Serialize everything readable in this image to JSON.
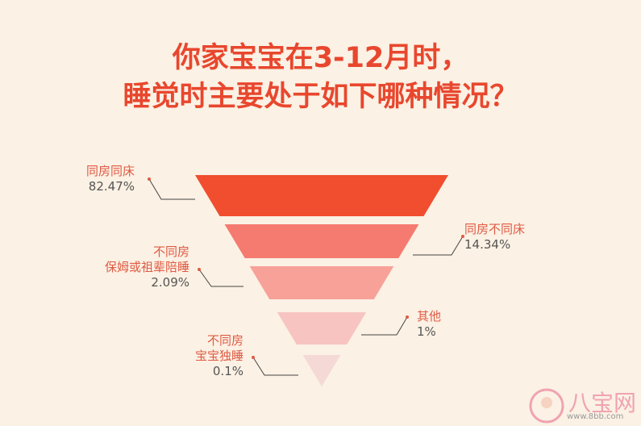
{
  "title": {
    "line1": "你家宝宝在3-12月时，",
    "line2": "睡觉时主要处于如下哪种情况？"
  },
  "chart_data": {
    "type": "funnel",
    "title": "你家宝宝在3-12月时，睡觉时主要处于如下哪种情况？",
    "categories": [
      "同房同床",
      "同房不同床",
      "不同房 保姆或祖辈陪睡",
      "其他",
      "不同房 宝宝独睡"
    ],
    "values": [
      82.47,
      14.34,
      2.09,
      1,
      0.1
    ],
    "value_labels": [
      "82.47%",
      "14.34%",
      "2.09%",
      "1%",
      "0.1%"
    ],
    "colors": [
      "#f04e2e",
      "#f57a70",
      "#f7a199",
      "#f7c4c1",
      "#f4d9d6"
    ],
    "labels": [
      {
        "lines": [
          "同房同床"
        ],
        "value": "82.47%",
        "side": "left"
      },
      {
        "lines": [
          "同房不同床"
        ],
        "value": "14.34%",
        "side": "right"
      },
      {
        "lines": [
          "不同房",
          "保姆或祖辈陪睡"
        ],
        "value": "2.09%",
        "side": "left"
      },
      {
        "lines": [
          "其他"
        ],
        "value": "1%",
        "side": "right"
      },
      {
        "lines": [
          "不同房",
          "宝宝独睡"
        ],
        "value": "0.1%",
        "side": "left"
      }
    ]
  },
  "watermark": {
    "brand": "八宝网",
    "url": "www.8bb.com"
  }
}
